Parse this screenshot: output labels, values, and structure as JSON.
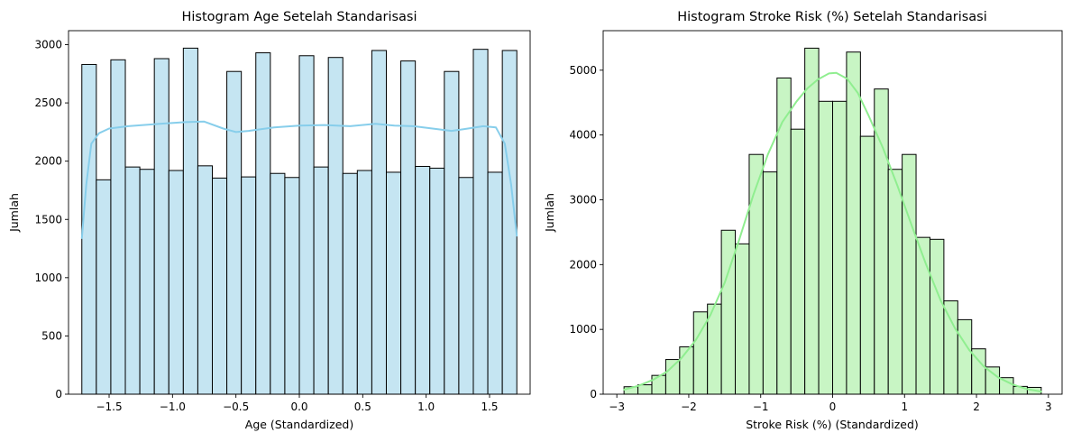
{
  "chart_data": [
    {
      "type": "bar",
      "title": "Histogram Age Setelah Standarisasi",
      "xlabel": "Age (Standardized)",
      "ylabel": "Jumlah",
      "xlim": [
        -1.82,
        1.82
      ],
      "ylim": [
        0,
        3120
      ],
      "xticks": [
        -1.5,
        -1.0,
        -0.5,
        0.0,
        0.5,
        1.0,
        1.5
      ],
      "xtick_labels": [
        "−1.5",
        "−1.0",
        "−0.5",
        "0.0",
        "0.5",
        "1.0",
        "1.5"
      ],
      "yticks": [
        0,
        500,
        1000,
        1500,
        2000,
        2500,
        3000
      ],
      "ytick_labels": [
        "0",
        "500",
        "1000",
        "1500",
        "2000",
        "2500",
        "3000"
      ],
      "bin_start": -1.715,
      "bin_end": 1.715,
      "values": [
        2830,
        1840,
        2870,
        1950,
        1930,
        2880,
        1920,
        2970,
        1960,
        1855,
        2770,
        1865,
        2930,
        1895,
        1860,
        2905,
        1950,
        2890,
        1895,
        1920,
        2950,
        1905,
        2860,
        1955,
        1940,
        2770,
        1860,
        2960,
        1905,
        2950
      ],
      "kde": [
        [
          -1.715,
          1340
        ],
        [
          -1.68,
          1800
        ],
        [
          -1.64,
          2150
        ],
        [
          -1.58,
          2240
        ],
        [
          -1.5,
          2280
        ],
        [
          -1.35,
          2300
        ],
        [
          -1.1,
          2320
        ],
        [
          -0.9,
          2335
        ],
        [
          -0.75,
          2340
        ],
        [
          -0.6,
          2280
        ],
        [
          -0.5,
          2250
        ],
        [
          -0.4,
          2260
        ],
        [
          -0.2,
          2290
        ],
        [
          0.0,
          2305
        ],
        [
          0.2,
          2310
        ],
        [
          0.4,
          2300
        ],
        [
          0.6,
          2320
        ],
        [
          0.75,
          2305
        ],
        [
          0.9,
          2300
        ],
        [
          1.05,
          2280
        ],
        [
          1.2,
          2260
        ],
        [
          1.3,
          2275
        ],
        [
          1.45,
          2300
        ],
        [
          1.55,
          2290
        ],
        [
          1.62,
          2150
        ],
        [
          1.67,
          1800
        ],
        [
          1.715,
          1360
        ]
      ],
      "bar_color": "#c5e5f2",
      "edge_color": "#000000",
      "kde_color": "#87ceeb"
    },
    {
      "type": "bar",
      "title": "Histogram Stroke Risk (%) Setelah Standarisasi",
      "xlabel": "Stroke Risk (%) (Standardized)",
      "ylabel": "Jumlah",
      "xlim": [
        -3.19,
        3.19
      ],
      "ylim": [
        0,
        5610
      ],
      "xticks": [
        -3,
        -2,
        -1,
        0,
        1,
        2,
        3
      ],
      "xtick_labels": [
        "−3",
        "−2",
        "−1",
        "0",
        "1",
        "2",
        "3"
      ],
      "yticks": [
        0,
        1000,
        2000,
        3000,
        4000,
        5000
      ],
      "ytick_labels": [
        "0",
        "1000",
        "2000",
        "3000",
        "4000",
        "5000"
      ],
      "bin_start": -2.9,
      "bin_end": 2.9,
      "values": [
        115,
        145,
        290,
        535,
        730,
        1270,
        1390,
        2530,
        2320,
        3700,
        3430,
        4880,
        4090,
        5340,
        4520,
        4520,
        5280,
        3980,
        4710,
        3470,
        3700,
        2420,
        2390,
        1440,
        1150,
        700,
        420,
        255,
        120,
        105
      ],
      "kde": [
        [
          -2.9,
          70
        ],
        [
          -2.7,
          130
        ],
        [
          -2.5,
          220
        ],
        [
          -2.3,
          350
        ],
        [
          -2.1,
          560
        ],
        [
          -1.9,
          840
        ],
        [
          -1.7,
          1220
        ],
        [
          -1.5,
          1720
        ],
        [
          -1.3,
          2380
        ],
        [
          -1.1,
          3080
        ],
        [
          -0.9,
          3700
        ],
        [
          -0.7,
          4200
        ],
        [
          -0.5,
          4520
        ],
        [
          -0.35,
          4720
        ],
        [
          -0.2,
          4860
        ],
        [
          -0.05,
          4950
        ],
        [
          0.05,
          4960
        ],
        [
          0.2,
          4870
        ],
        [
          0.35,
          4650
        ],
        [
          0.5,
          4300
        ],
        [
          0.7,
          3800
        ],
        [
          0.9,
          3220
        ],
        [
          1.1,
          2600
        ],
        [
          1.3,
          2000
        ],
        [
          1.5,
          1450
        ],
        [
          1.7,
          1020
        ],
        [
          1.9,
          680
        ],
        [
          2.1,
          430
        ],
        [
          2.3,
          260
        ],
        [
          2.5,
          150
        ],
        [
          2.7,
          80
        ],
        [
          2.9,
          40
        ]
      ],
      "bar_color": "#c8f5c4",
      "edge_color": "#000000",
      "kde_color": "#90ee90"
    }
  ]
}
